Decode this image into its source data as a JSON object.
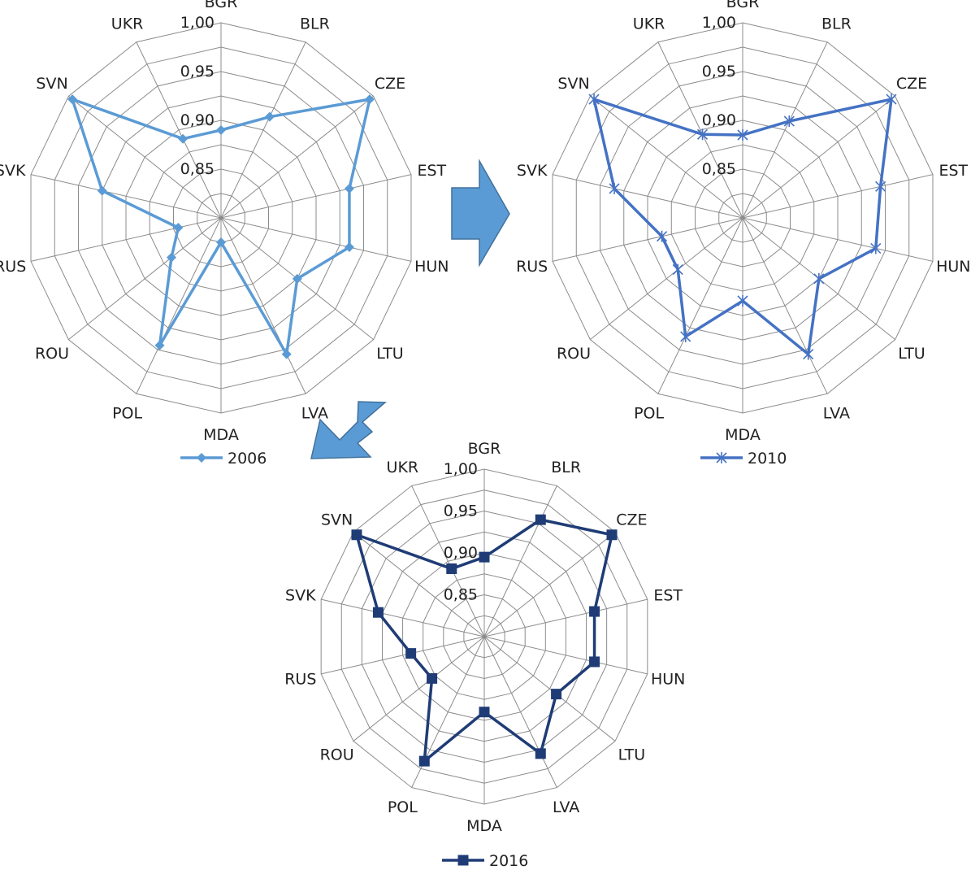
{
  "chart_data": [
    {
      "type": "radar",
      "categories": [
        "BGR",
        "BLR",
        "CZE",
        "EST",
        "HUN",
        "LTU",
        "LVA",
        "MDA",
        "POL",
        "ROU",
        "RUS",
        "SVK",
        "SVN",
        "UKR"
      ],
      "rlim": [
        0.8,
        1.0
      ],
      "ticks": [
        "0,85",
        "0,90",
        "0,95",
        "1,00"
      ],
      "tick_values": [
        0.85,
        0.9,
        0.95,
        1.0
      ],
      "grid": true,
      "legend": "bottom",
      "series": [
        {
          "name": "2006",
          "color": "#5b9bd5",
          "marker": "diamond",
          "values": [
            0.89,
            0.915,
            0.995,
            0.935,
            0.935,
            0.9,
            0.955,
            0.825,
            0.945,
            0.865,
            0.845,
            0.925,
            0.995,
            0.89
          ]
        }
      ]
    },
    {
      "type": "radar",
      "categories": [
        "BGR",
        "BLR",
        "CZE",
        "EST",
        "HUN",
        "LTU",
        "LVA",
        "MDA",
        "POL",
        "ROU",
        "RUS",
        "SVK",
        "SVN",
        "UKR"
      ],
      "rlim": [
        0.8,
        1.0
      ],
      "ticks": [
        "0,85",
        "0,90",
        "0,95",
        "1,00"
      ],
      "tick_values": [
        0.85,
        0.9,
        0.95,
        1.0
      ],
      "grid": true,
      "legend": "bottom",
      "series": [
        {
          "name": "2010",
          "color": "#4472c4",
          "marker": "star",
          "values": [
            0.885,
            0.91,
            0.995,
            0.945,
            0.94,
            0.9,
            0.955,
            0.885,
            0.935,
            0.885,
            0.885,
            0.935,
            0.995,
            0.895
          ]
        }
      ]
    },
    {
      "type": "radar",
      "categories": [
        "BGR",
        "BLR",
        "CZE",
        "EST",
        "HUN",
        "LTU",
        "LVA",
        "MDA",
        "POL",
        "ROU",
        "RUS",
        "SVK",
        "SVN",
        "UKR"
      ],
      "rlim": [
        0.8,
        1.0
      ],
      "ticks": [
        "0,85",
        "0,90",
        "0,95",
        "1,00"
      ],
      "tick_values": [
        0.85,
        0.9,
        0.95,
        1.0
      ],
      "grid": true,
      "legend": "bottom",
      "series": [
        {
          "name": "2016",
          "color": "#1f3c76",
          "marker": "square",
          "values": [
            0.895,
            0.955,
            0.995,
            0.935,
            0.935,
            0.91,
            0.955,
            0.89,
            0.965,
            0.88,
            0.89,
            0.93,
            0.995,
            0.89
          ]
        }
      ]
    }
  ],
  "arrows": {
    "color": "#5b9bd5"
  }
}
